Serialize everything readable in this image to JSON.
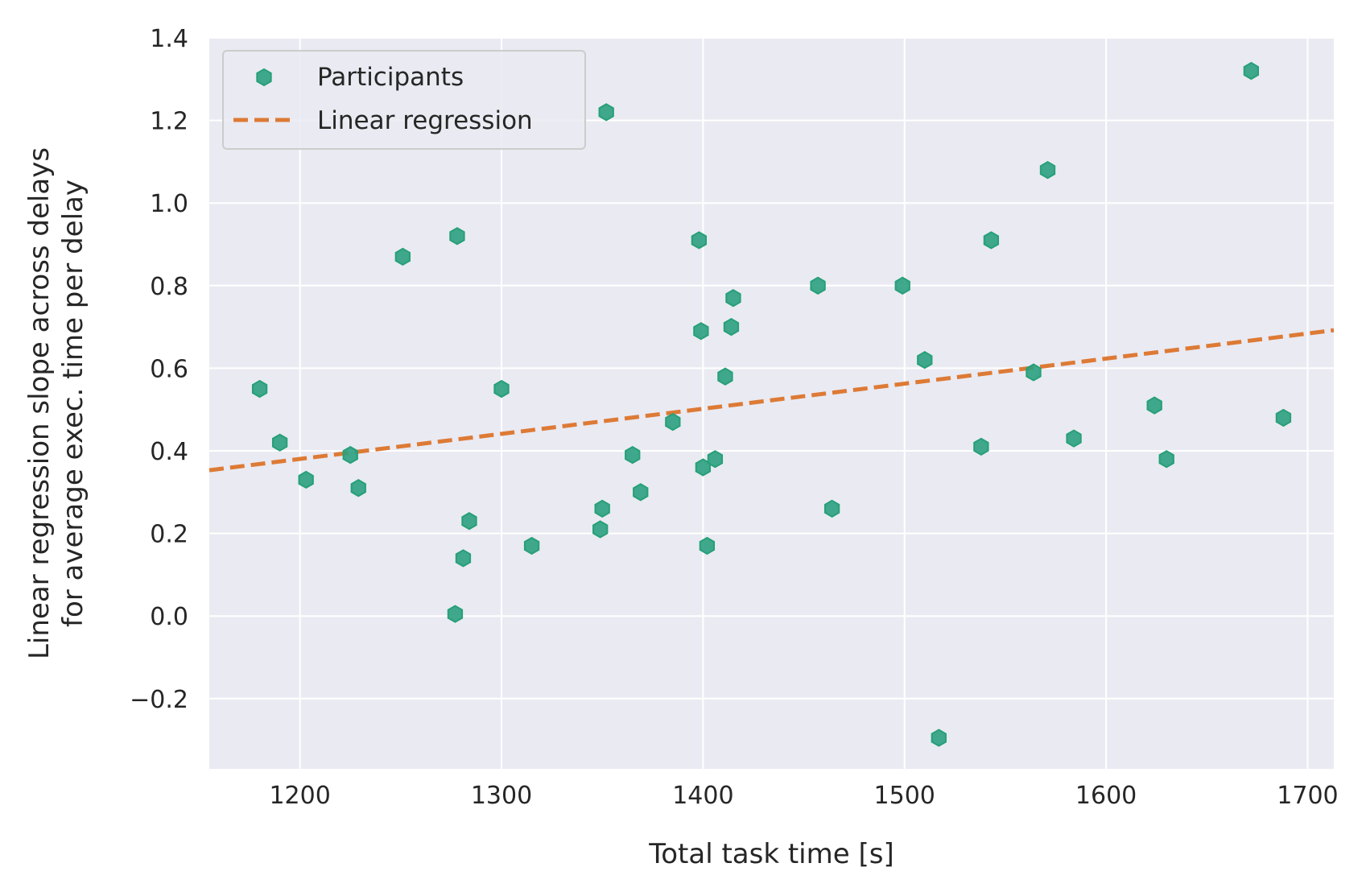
{
  "chart_data": {
    "type": "scatter",
    "xlabel": "Total task time [s]",
    "ylabel_lines": [
      "Linear regression slope across delays",
      "for average exec. time per delay"
    ],
    "xlim": [
      1155,
      1713
    ],
    "ylim": [
      -0.37,
      1.4
    ],
    "xticks": [
      1200,
      1300,
      1400,
      1500,
      1600,
      1700
    ],
    "xtick_labels": [
      "1200",
      "1300",
      "1400",
      "1500",
      "1600",
      "1700"
    ],
    "yticks": [
      -0.2,
      0.0,
      0.2,
      0.4,
      0.6,
      0.8,
      1.0,
      1.2,
      1.4
    ],
    "ytick_labels": [
      "−0.2",
      "0.0",
      "0.2",
      "0.4",
      "0.6",
      "0.8",
      "1.0",
      "1.2",
      "1.4"
    ],
    "grid": true,
    "legend_position": "top-left",
    "legend": [
      {
        "label": "Participants",
        "kind": "marker"
      },
      {
        "label": "Linear regression",
        "kind": "dashed-line"
      }
    ],
    "colors": {
      "background": "#eaeaf2",
      "grid": "#ffffff",
      "points": "#2ca07f",
      "regression": "#dd7a35"
    },
    "series": [
      {
        "name": "Participants",
        "type": "scatter",
        "points": [
          [
            1180,
            0.55
          ],
          [
            1190,
            0.42
          ],
          [
            1203,
            0.33
          ],
          [
            1225,
            0.39
          ],
          [
            1229,
            0.31
          ],
          [
            1251,
            0.87
          ],
          [
            1277,
            0.005
          ],
          [
            1278,
            0.92
          ],
          [
            1281,
            0.14
          ],
          [
            1284,
            0.23
          ],
          [
            1300,
            0.55
          ],
          [
            1315,
            0.17
          ],
          [
            1349,
            0.21
          ],
          [
            1350,
            0.26
          ],
          [
            1352,
            1.22
          ],
          [
            1365,
            0.39
          ],
          [
            1369,
            0.3
          ],
          [
            1385,
            0.47
          ],
          [
            1398,
            0.91
          ],
          [
            1399,
            0.69
          ],
          [
            1400,
            0.36
          ],
          [
            1402,
            0.17
          ],
          [
            1406,
            0.38
          ],
          [
            1411,
            0.58
          ],
          [
            1414,
            0.7
          ],
          [
            1415,
            0.77
          ],
          [
            1457,
            0.8
          ],
          [
            1464,
            0.26
          ],
          [
            1499,
            0.8
          ],
          [
            1510,
            0.62
          ],
          [
            1517,
            -0.295
          ],
          [
            1538,
            0.41
          ],
          [
            1543,
            0.91
          ],
          [
            1564,
            0.59
          ],
          [
            1571,
            1.08
          ],
          [
            1584,
            0.43
          ],
          [
            1624,
            0.51
          ],
          [
            1630,
            0.38
          ],
          [
            1672,
            1.32
          ],
          [
            1688,
            0.48
          ]
        ]
      },
      {
        "name": "Linear regression",
        "type": "line",
        "points": [
          [
            1155,
            0.353
          ],
          [
            1713,
            0.692
          ]
        ]
      }
    ]
  }
}
